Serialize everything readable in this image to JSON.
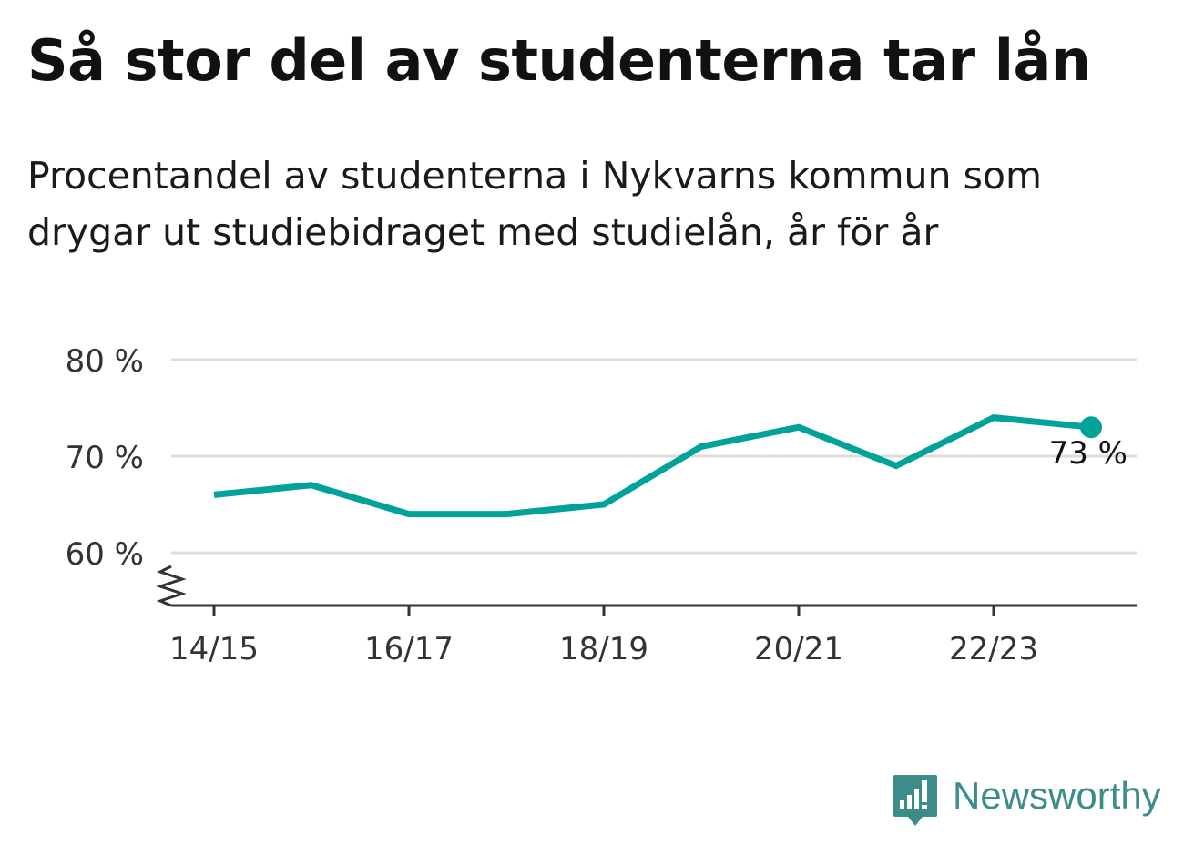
{
  "title": "Så stor del av studenterna tar lån",
  "subtitle": "Procentandel av studenterna i Nykvarns kommun som drygar ut studiebidraget med studielån, år för år",
  "chart_data": {
    "type": "line",
    "x": [
      "14/15",
      "15/16",
      "16/17",
      "17/18",
      "18/19",
      "19/20",
      "20/21",
      "21/22",
      "22/23",
      "23/24"
    ],
    "x_tick_labels": [
      "14/15",
      "16/17",
      "18/19",
      "20/21",
      "22/23"
    ],
    "series": [
      {
        "values": [
          66,
          67,
          64,
          64,
          65,
          71,
          73,
          69,
          74,
          73
        ]
      }
    ],
    "ylim": [
      55,
      80
    ],
    "y_ticks": [
      60,
      70,
      80
    ],
    "y_tick_labels": [
      "60 %",
      "70 %",
      "80 %"
    ],
    "axis_break": true,
    "grid": true,
    "last_value_label": "73 %",
    "line_color": "#00a29a"
  },
  "brand": {
    "name": "Newsworthy",
    "icon": "newsworthy-logo-icon",
    "color": "#3c8d8a"
  }
}
